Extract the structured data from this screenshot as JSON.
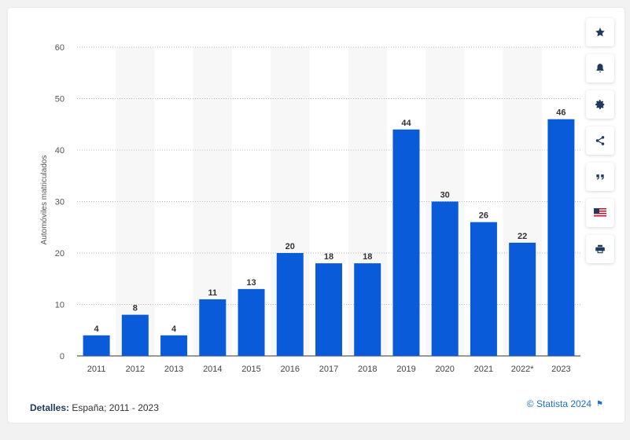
{
  "chart_data": {
    "type": "bar",
    "categories": [
      "2011",
      "2012",
      "2013",
      "2014",
      "2015",
      "2016",
      "2017",
      "2018",
      "2019",
      "2020",
      "2021",
      "2022*",
      "2023"
    ],
    "values": [
      4,
      8,
      4,
      11,
      13,
      20,
      18,
      18,
      44,
      30,
      26,
      22,
      46
    ],
    "ylabel": "Automóviles matriculados",
    "xlabel": "",
    "ylim": [
      0,
      60
    ],
    "yticks": [
      0,
      10,
      20,
      30,
      40,
      50,
      60
    ],
    "grid": true,
    "bar_color": "#0a5bd9",
    "band_color": "#f7f7f7"
  },
  "footer": {
    "details_label": "Detalles:",
    "details_text": "España; 2011 - 2023",
    "credit": "© Statista 2024"
  },
  "toolbar": {
    "icons": [
      "star-icon",
      "bell-icon",
      "gear-icon",
      "share-icon",
      "quote-icon",
      "flag-icon",
      "print-icon"
    ]
  },
  "colors": {
    "accent": "#0a5bd9",
    "icon": "#1f3a5f",
    "credit": "#1f6ec8"
  }
}
